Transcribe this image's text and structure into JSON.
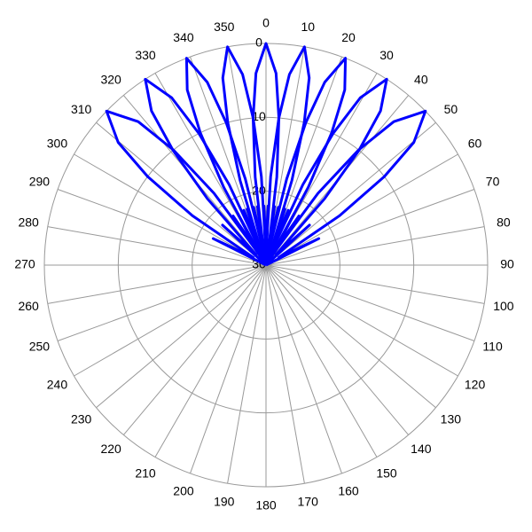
{
  "chart_data": {
    "type": "polar",
    "direction": "clockwise",
    "zero": "top",
    "rlim": [
      30,
      0
    ],
    "rticks": [
      0,
      10,
      20,
      30
    ],
    "thetaticks": [
      0,
      10,
      20,
      30,
      40,
      50,
      60,
      70,
      80,
      90,
      100,
      110,
      120,
      130,
      140,
      150,
      160,
      170,
      180,
      190,
      200,
      210,
      220,
      230,
      240,
      250,
      260,
      270,
      280,
      290,
      300,
      310,
      320,
      330,
      340,
      350
    ],
    "grid": true,
    "series": [
      {
        "color": "#0000ff",
        "theta": [
          -67.6,
          -63.3,
          -59,
          -56.1,
          -53.2,
          -50.3,
          -46,
          -41.7,
          -38.8,
          -35.9,
          -33,
          -28.7,
          -24.4
        ],
        "r": [
          30,
          22,
          28,
          18,
          10,
          4,
          0,
          4,
          10,
          18,
          28,
          22,
          30
        ]
      },
      {
        "color": "#0000ff",
        "theta": [
          -51,
          -47.4,
          -43.8,
          -41.4,
          -39,
          -36.6,
          -33,
          -29.4,
          -27,
          -24.6,
          -22.2,
          -18.6,
          -15
        ],
        "r": [
          30,
          22,
          28,
          18,
          10,
          4,
          0,
          4,
          10,
          18,
          28,
          22,
          30
        ]
      },
      {
        "color": "#0000ff",
        "theta": [
          -37,
          -33.8,
          -30.6,
          -28.5,
          -26.4,
          -24.2,
          -21,
          -17.8,
          -15.6,
          -13.5,
          -11.4,
          -8.2,
          -5
        ],
        "r": [
          30,
          22,
          28,
          18,
          10,
          4,
          0,
          4,
          10,
          18,
          28,
          22,
          30
        ]
      },
      {
        "color": "#0000ff",
        "theta": [
          -25,
          -22,
          -19,
          -17,
          -15,
          -13,
          -10,
          -7,
          -5,
          -3,
          -1,
          2,
          5
        ],
        "r": [
          30,
          22,
          28,
          18,
          10,
          4,
          0,
          4,
          10,
          18,
          28,
          22,
          30
        ]
      },
      {
        "color": "#0000ff",
        "theta": [
          -15,
          -12,
          -9,
          -7,
          -5,
          -3,
          0,
          3,
          5,
          7,
          9,
          12,
          15
        ],
        "r": [
          30,
          22,
          28,
          18,
          10,
          4,
          0,
          4,
          10,
          18,
          28,
          22,
          30
        ]
      },
      {
        "color": "#0000ff",
        "theta": [
          -5,
          -2,
          1,
          3,
          5,
          7,
          10,
          13,
          15,
          17,
          19,
          22,
          25
        ],
        "r": [
          30,
          22,
          28,
          18,
          10,
          4,
          0,
          4,
          10,
          18,
          28,
          22,
          30
        ]
      },
      {
        "color": "#0000ff",
        "theta": [
          5,
          8.2,
          11.4,
          13.5,
          15.6,
          17.8,
          21,
          24.2,
          26.4,
          28.5,
          30.6,
          33.8,
          37
        ],
        "r": [
          30,
          22,
          28,
          18,
          10,
          4,
          0,
          4,
          10,
          18,
          28,
          22,
          30
        ]
      },
      {
        "color": "#0000ff",
        "theta": [
          15,
          18.6,
          22.2,
          24.6,
          27,
          29.4,
          33,
          36.6,
          39,
          41.4,
          43.8,
          47.4,
          51
        ],
        "r": [
          30,
          22,
          28,
          18,
          10,
          4,
          0,
          4,
          10,
          18,
          28,
          22,
          30
        ]
      },
      {
        "color": "#0000ff",
        "theta": [
          24.4,
          28.7,
          33,
          35.9,
          38.8,
          41.7,
          46,
          50.3,
          53.2,
          56.1,
          59,
          63.3,
          67.6
        ],
        "r": [
          30,
          22,
          28,
          18,
          10,
          4,
          0,
          4,
          10,
          18,
          28,
          22,
          30
        ]
      }
    ]
  }
}
